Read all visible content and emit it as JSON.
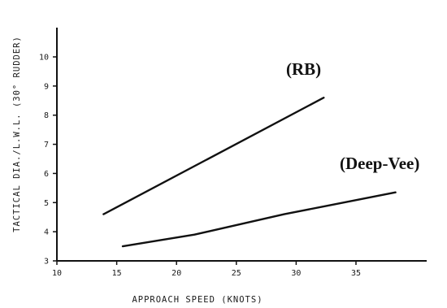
{
  "chart_data": {
    "type": "line",
    "xlabel": "APPROACH SPEED (KNOTS)",
    "ylabel": "TACTICAL DIA./L.W.L. (30° RUDDER)",
    "xlim": [
      10,
      39
    ],
    "ylim": [
      3,
      10.8
    ],
    "x_ticks": [
      "10",
      "15",
      "20",
      "25",
      "30",
      "35"
    ],
    "y_ticks": [
      "3",
      "4",
      "5",
      "6",
      "7",
      "8",
      "9",
      "10"
    ],
    "series": [
      {
        "name": "(RB)",
        "x": [
          13.9,
          32.3
        ],
        "y": [
          4.6,
          8.6
        ],
        "color": "#111111"
      },
      {
        "name": "(Deep-Vee)",
        "x": [
          15.5,
          21.5,
          29.0,
          38.3
        ],
        "y": [
          3.5,
          3.9,
          4.6,
          5.35
        ],
        "color": "#111111"
      }
    ],
    "grid": false,
    "legend": "inline"
  }
}
